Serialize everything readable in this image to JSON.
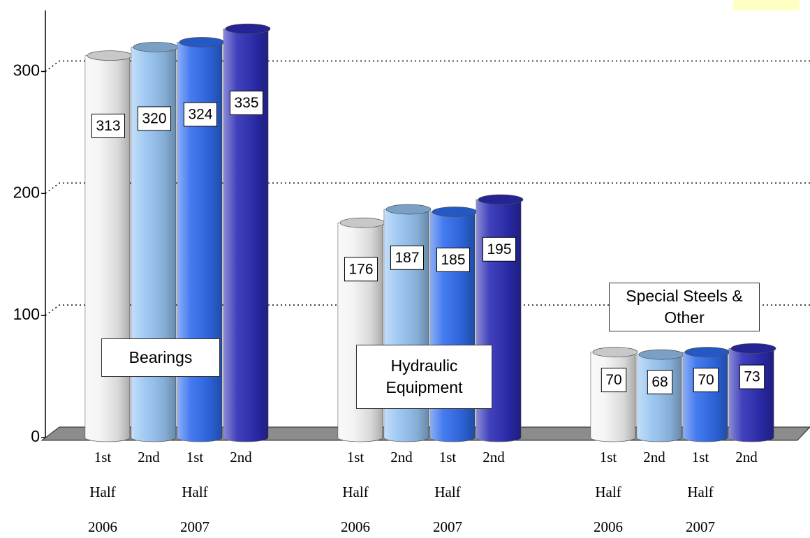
{
  "chart_data": {
    "type": "bar3d",
    "categories": [
      "Bearings",
      "Hydraulic Equipment",
      "Special Steels & Other"
    ],
    "series": [
      {
        "color": "#f4f4f4",
        "values": [
          313,
          176,
          70
        ]
      },
      {
        "color": "#96c4f2",
        "values": [
          320,
          187,
          68
        ]
      },
      {
        "color": "#2f6cee",
        "values": [
          324,
          185,
          70
        ]
      },
      {
        "color": "#2c2cb6",
        "values": [
          335,
          195,
          73
        ]
      }
    ],
    "bar_labels": [
      [
        [
          "1st",
          "Half",
          "2006"
        ],
        [
          "2nd"
        ],
        [
          "1st",
          "Half",
          "2007"
        ],
        [
          "2nd"
        ]
      ],
      [
        [
          "1st",
          "Half",
          "2006"
        ],
        [
          "2nd"
        ],
        [
          "1st",
          "Half",
          "2007"
        ],
        [
          "2nd"
        ]
      ],
      [
        [
          "1st",
          "Half",
          "2006"
        ],
        [
          "2nd"
        ],
        [
          "1st",
          "Half",
          "2007"
        ],
        [
          "2nd"
        ]
      ]
    ],
    "ylim": [
      0,
      350
    ],
    "yticks": [
      0,
      100,
      200,
      300
    ],
    "grid": true,
    "floor_color": "#8c8c8c"
  }
}
